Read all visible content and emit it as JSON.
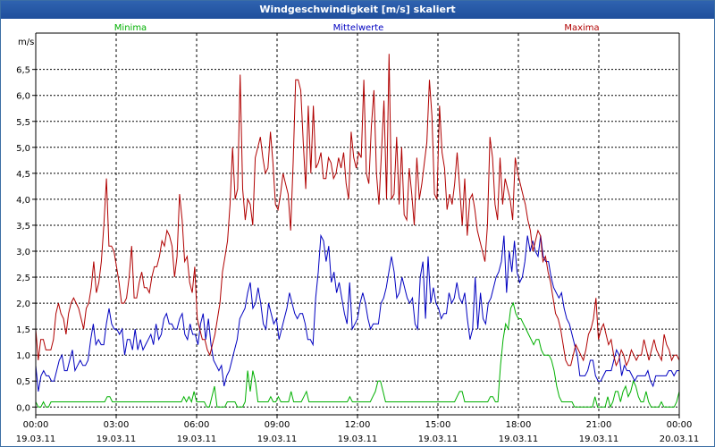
{
  "window": {
    "title": "Windgeschwindigkeit [m/s] skaliert"
  },
  "colors": {
    "minima": "#00b000",
    "mittelwerte": "#0000c0",
    "maxima": "#b00000",
    "titlebar": "#2558a6"
  },
  "chart_data": {
    "type": "line",
    "ylabel": "m/s",
    "ylim": [
      -0.15,
      7.2
    ],
    "y_ticks": [
      "0,0",
      "0,5",
      "1,0",
      "1,5",
      "2,0",
      "2,5",
      "3,0",
      "3,5",
      "4,0",
      "4,5",
      "5,0",
      "5,5",
      "6,0",
      "6,5"
    ],
    "x_ticks": [
      {
        "time": "00:00",
        "date": "19.03.11"
      },
      {
        "time": "03:00",
        "date": "19.03.11"
      },
      {
        "time": "06:00",
        "date": "19.03.11"
      },
      {
        "time": "09:00",
        "date": "19.03.11"
      },
      {
        "time": "12:00",
        "date": "19.03.11"
      },
      {
        "time": "15:00",
        "date": "19.03.11"
      },
      {
        "time": "18:00",
        "date": "19.03.11"
      },
      {
        "time": "21:00",
        "date": "19.03.11"
      },
      {
        "time": "00:00",
        "date": "20.03.11"
      }
    ],
    "grid": true,
    "series": [
      {
        "name": "Minima",
        "values": [
          0.1,
          0.0,
          0.0,
          0.1,
          0.0,
          0.0,
          0.1,
          0.1,
          0.1,
          0.1,
          0.1,
          0.1,
          0.1,
          0.1,
          0.1,
          0.1,
          0.1,
          0.1,
          0.1,
          0.1,
          0.1,
          0.1,
          0.1,
          0.1,
          0.1,
          0.1,
          0.1,
          0.1,
          0.2,
          0.2,
          0.1,
          0.1,
          0.1,
          0.1,
          0.1,
          0.1,
          0.1,
          0.1,
          0.1,
          0.1,
          0.1,
          0.1,
          0.1,
          0.1,
          0.1,
          0.1,
          0.1,
          0.1,
          0.1,
          0.1,
          0.1,
          0.1,
          0.1,
          0.1,
          0.1,
          0.1,
          0.1,
          0.1,
          0.2,
          0.1,
          0.2,
          0.1,
          0.3,
          0.1,
          0.1,
          0.1,
          0.1,
          0.0,
          0.0,
          0.2,
          0.4,
          0.0,
          0.0,
          0.0,
          0.0,
          0.1,
          0.1,
          0.1,
          0.1,
          0.0,
          0.0,
          0.0,
          0.1,
          0.7,
          0.3,
          0.7,
          0.5,
          0.1,
          0.1,
          0.1,
          0.1,
          0.1,
          0.2,
          0.1,
          0.1,
          0.2,
          0.1,
          0.1,
          0.1,
          0.1,
          0.3,
          0.1,
          0.1,
          0.1,
          0.1,
          0.2,
          0.3,
          0.1,
          0.1,
          0.1,
          0.1,
          0.1,
          0.1,
          0.1,
          0.1,
          0.1,
          0.1,
          0.1,
          0.1,
          0.1,
          0.1,
          0.1,
          0.1,
          0.2,
          0.1,
          0.1,
          0.1,
          0.1,
          0.1,
          0.1,
          0.1,
          0.1,
          0.2,
          0.3,
          0.5,
          0.5,
          0.3,
          0.1,
          0.1,
          0.1,
          0.1,
          0.1,
          0.1,
          0.1,
          0.1,
          0.1,
          0.1,
          0.1,
          0.1,
          0.1,
          0.1,
          0.1,
          0.1,
          0.1,
          0.1,
          0.1,
          0.1,
          0.1,
          0.1,
          0.1,
          0.1,
          0.1,
          0.1,
          0.1,
          0.1,
          0.2,
          0.3,
          0.3,
          0.1,
          0.1,
          0.1,
          0.1,
          0.1,
          0.1,
          0.1,
          0.1,
          0.1,
          0.1,
          0.2,
          0.2,
          0.1,
          0.1,
          0.8,
          1.3,
          1.6,
          1.5,
          1.9,
          2.0,
          1.8,
          1.7,
          1.7,
          1.6,
          1.5,
          1.4,
          1.3,
          1.2,
          1.3,
          1.3,
          1.1,
          1.0,
          1.0,
          1.0,
          0.9,
          0.7,
          0.4,
          0.2,
          0.1,
          0.1,
          0.1,
          0.1,
          0.1,
          0.0,
          0.0,
          0.0,
          0.0,
          0.0,
          0.0,
          0.0,
          0.0,
          0.2,
          0.0,
          0.0,
          0.0,
          0.0,
          0.2,
          0.0,
          0.1,
          0.3,
          0.3,
          0.1,
          0.3,
          0.4,
          0.2,
          0.3,
          0.5,
          0.4,
          0.2,
          0.1,
          0.1,
          0.3,
          0.1,
          0.0,
          0.0,
          0.0,
          0.0,
          0.1,
          0.0,
          0.0,
          0.0,
          0.0,
          0.0,
          0.1,
          0.3
        ]
      },
      {
        "name": "Mittelwerte",
        "values": [
          0.8,
          0.3,
          0.6,
          0.7,
          0.6,
          0.6,
          0.5,
          0.5,
          0.7,
          0.9,
          1.0,
          0.7,
          0.7,
          0.9,
          1.1,
          0.7,
          0.8,
          0.9,
          0.8,
          0.8,
          0.9,
          1.3,
          1.6,
          1.2,
          1.3,
          1.2,
          1.2,
          1.6,
          1.9,
          1.6,
          1.5,
          1.5,
          1.4,
          1.5,
          1.0,
          1.3,
          1.3,
          1.1,
          1.5,
          1.1,
          1.3,
          1.1,
          1.2,
          1.3,
          1.4,
          1.2,
          1.6,
          1.3,
          1.4,
          1.7,
          1.8,
          1.6,
          1.6,
          1.5,
          1.5,
          1.7,
          1.8,
          1.4,
          1.3,
          1.6,
          1.4,
          1.4,
          1.2,
          1.6,
          1.8,
          1.3,
          1.7,
          1.2,
          0.9,
          0.8,
          0.7,
          0.8,
          0.4,
          0.6,
          0.7,
          0.9,
          1.1,
          1.3,
          1.7,
          1.8,
          1.9,
          2.2,
          2.4,
          1.9,
          2.0,
          2.3,
          2.0,
          1.6,
          1.5,
          2.0,
          1.8,
          1.6,
          1.7,
          1.3,
          1.5,
          1.7,
          1.9,
          2.2,
          2.0,
          1.8,
          1.7,
          1.8,
          1.8,
          1.6,
          1.3,
          1.3,
          1.2,
          2.1,
          2.6,
          3.3,
          3.2,
          2.8,
          3.1,
          2.4,
          2.6,
          2.2,
          2.4,
          2.1,
          1.8,
          1.6,
          2.4,
          1.5,
          1.6,
          1.7,
          2.0,
          2.2,
          2.0,
          1.7,
          1.5,
          1.6,
          1.6,
          1.6,
          2.0,
          2.1,
          2.3,
          2.6,
          2.9,
          2.6,
          2.1,
          2.2,
          2.5,
          2.3,
          2.1,
          2.0,
          2.1,
          1.6,
          1.5,
          2.5,
          2.8,
          1.7,
          2.9,
          2.0,
          2.3,
          2.0,
          1.9,
          1.7,
          1.8,
          1.8,
          2.2,
          2.0,
          2.1,
          2.4,
          2.1,
          2.0,
          2.2,
          1.7,
          1.3,
          1.5,
          2.5,
          1.5,
          2.2,
          1.7,
          1.6,
          2.0,
          2.1,
          2.3,
          2.5,
          2.6,
          2.8,
          3.3,
          2.2,
          3.0,
          2.6,
          3.2,
          2.6,
          2.4,
          2.5,
          2.8,
          3.3,
          3.0,
          3.2,
          3.0,
          2.9,
          3.3,
          2.9,
          2.8,
          2.8,
          2.5,
          2.3,
          2.2,
          2.1,
          2.2,
          1.9,
          1.7,
          1.6,
          1.4,
          1.2,
          1.0,
          0.6,
          0.6,
          0.6,
          0.7,
          0.9,
          0.9,
          0.6,
          0.5,
          0.5,
          0.6,
          0.7,
          0.7,
          0.7,
          0.9,
          1.1,
          1.0,
          0.6,
          0.8,
          0.7,
          0.7,
          0.6,
          0.5,
          0.6,
          0.6,
          0.6,
          0.6,
          0.7,
          0.5,
          0.4,
          0.6,
          0.6,
          0.6,
          0.6,
          0.6,
          0.7,
          0.7,
          0.6,
          0.7,
          0.7
        ]
      },
      {
        "name": "Maxima",
        "values": [
          1.5,
          0.9,
          1.3,
          1.3,
          1.1,
          1.1,
          1.1,
          1.3,
          1.8,
          2.0,
          1.8,
          1.7,
          1.4,
          1.8,
          2.0,
          2.1,
          2.0,
          1.9,
          1.7,
          1.5,
          1.9,
          2.0,
          2.3,
          2.8,
          2.2,
          2.4,
          2.8,
          3.5,
          4.4,
          3.1,
          3.1,
          3.0,
          2.7,
          2.4,
          2.0,
          2.0,
          2.1,
          2.5,
          3.1,
          2.1,
          2.1,
          2.4,
          2.6,
          2.3,
          2.3,
          2.2,
          2.5,
          2.7,
          2.7,
          2.9,
          3.2,
          3.1,
          3.4,
          3.3,
          3.1,
          2.5,
          2.9,
          4.1,
          3.6,
          2.8,
          2.9,
          2.4,
          2.2,
          2.7,
          1.7,
          1.5,
          1.3,
          1.3,
          1.1,
          1.0,
          1.2,
          1.4,
          1.7,
          2.0,
          2.6,
          2.9,
          3.2,
          3.9,
          5.0,
          4.0,
          4.2,
          6.4,
          4.2,
          3.6,
          4.0,
          3.9,
          3.5,
          4.8,
          5.0,
          5.2,
          4.8,
          4.5,
          4.6,
          5.3,
          4.7,
          3.9,
          3.8,
          4.1,
          4.5,
          4.3,
          4.1,
          3.4,
          4.7,
          6.3,
          6.3,
          6.1,
          5.1,
          4.2,
          5.8,
          4.5,
          5.8,
          4.6,
          4.7,
          4.9,
          4.4,
          4.4,
          4.8,
          4.7,
          4.4,
          4.5,
          4.8,
          4.6,
          4.9,
          4.3,
          4.0,
          5.3,
          4.8,
          4.6,
          4.9,
          4.8,
          6.3,
          4.5,
          4.3,
          5.4,
          6.1,
          4.5,
          3.9,
          4.9,
          5.9,
          4.0,
          6.8,
          4.0,
          4.1,
          5.2,
          3.9,
          5.0,
          3.7,
          3.6,
          4.6,
          4.1,
          3.5,
          4.8,
          4.0,
          4.3,
          4.7,
          5.1,
          6.3,
          5.6,
          4.1,
          4.0,
          5.8,
          4.9,
          4.6,
          3.8,
          4.1,
          3.9,
          4.3,
          4.9,
          4.2,
          3.5,
          4.4,
          3.3,
          4.0,
          4.1,
          3.8,
          3.4,
          3.2,
          3.0,
          2.8,
          3.5,
          5.2,
          4.8,
          3.9,
          3.6,
          4.8,
          3.9,
          4.4,
          4.2,
          4.0,
          3.6,
          4.8,
          4.5,
          4.3,
          4.1,
          3.9,
          3.6,
          3.4,
          3.0,
          3.2,
          3.4,
          3.3,
          2.8,
          2.9,
          2.6,
          2.4,
          2.1,
          1.8,
          1.7,
          1.5,
          1.2,
          0.9,
          0.8,
          0.8,
          1.0,
          1.2,
          1.1,
          1.0,
          0.9,
          1.1,
          1.4,
          1.5,
          1.7,
          2.1,
          1.3,
          1.5,
          1.6,
          1.4,
          1.2,
          1.3,
          1.0,
          0.8,
          0.9,
          1.1,
          1.0,
          0.8,
          0.9,
          1.1,
          1.0,
          0.9,
          1.0,
          1.0,
          1.3,
          1.1,
          0.9,
          1.1,
          1.3,
          1.1,
          1.0,
          0.9,
          1.4,
          1.2,
          1.1,
          0.9,
          1.0,
          1.0,
          0.9
        ]
      }
    ]
  }
}
